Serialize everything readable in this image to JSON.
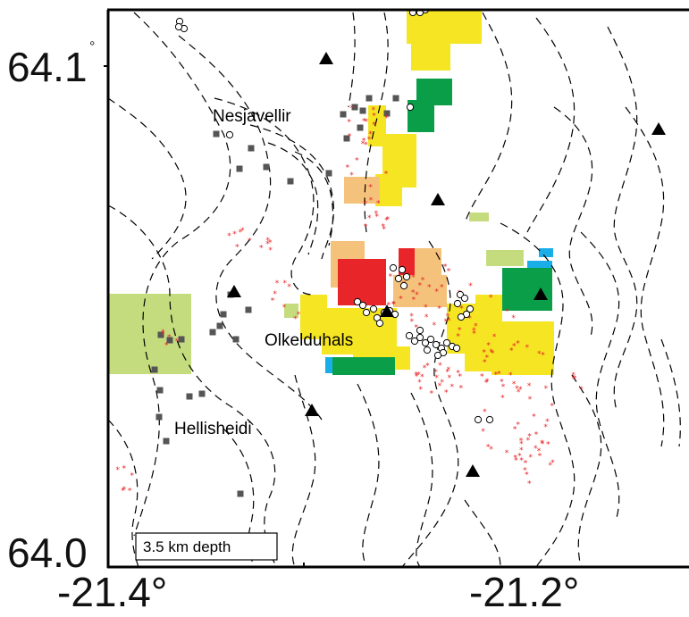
{
  "axes": {
    "y_ticks": [
      {
        "label": "64.1",
        "deg": "°"
      },
      {
        "label": "64.0",
        "deg": ""
      }
    ],
    "x_ticks": [
      {
        "label": "-21.4°"
      },
      {
        "label": "-21.2°"
      }
    ]
  },
  "places": [
    {
      "id": "nesjavellir",
      "label": "Nesjavellir"
    },
    {
      "id": "olkelduhals",
      "label": "Olkelduhals"
    },
    {
      "id": "hellisheidi",
      "label": "Hellisheidi"
    }
  ],
  "depth_label": "3.5 km depth",
  "colors": {
    "yellow": "#f5e523",
    "green": "#0a9e48",
    "red": "#e8262a",
    "peach": "#f4c27a",
    "light_green": "#c5dc7e",
    "cyan": "#1aaee8",
    "grey_square": "#555555",
    "red_star": "#e8262a",
    "triangle": "#000000",
    "contour": "#000000"
  },
  "icons": [
    "triangle-station-icon",
    "circle-event-icon",
    "square-event-icon",
    "star-event-icon"
  ]
}
